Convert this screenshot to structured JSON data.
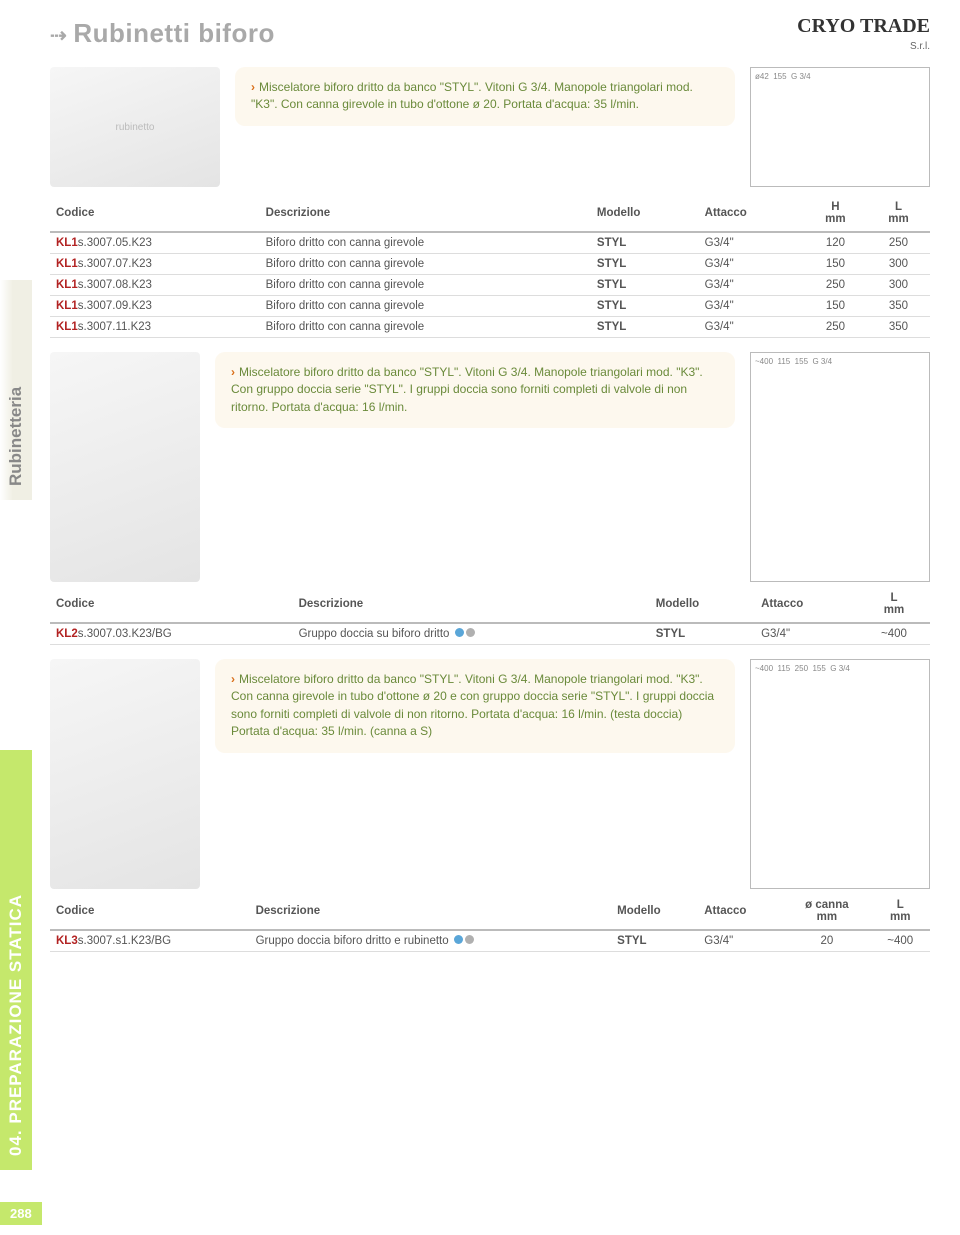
{
  "header": {
    "title": "Rubinetti biforo",
    "logo": "CRYO TRADE",
    "logo_sub": "S.r.l."
  },
  "sidebar": {
    "tab1": "Rubinetteria",
    "tab2": "04. PREPARAZIONE STATICA"
  },
  "section1": {
    "desc": "Miscelatore biforo dritto da banco \"STYL\". Vitoni G 3/4. Manopole triangolari mod. \"K3\". Con canna girevole in tubo d'ottone ø 20. Portata d'acqua: 35 l/min.",
    "table": {
      "headers": [
        "Codice",
        "Descrizione",
        "Modello",
        "Attacco",
        "H mm",
        "L mm"
      ],
      "rows": [
        {
          "code_prefix": "KL",
          "code_red": "1",
          "code_rest": "s.3007.05.K23",
          "desc": "Biforo dritto con canna girevole",
          "model": "STYL",
          "att": "G3/4\"",
          "h": "120",
          "l": "250"
        },
        {
          "code_prefix": "KL",
          "code_red": "1",
          "code_rest": "s.3007.07.K23",
          "desc": "Biforo dritto con canna girevole",
          "model": "STYL",
          "att": "G3/4\"",
          "h": "150",
          "l": "300"
        },
        {
          "code_prefix": "KL",
          "code_red": "1",
          "code_rest": "s.3007.08.K23",
          "desc": "Biforo dritto con canna girevole",
          "model": "STYL",
          "att": "G3/4\"",
          "h": "250",
          "l": "300"
        },
        {
          "code_prefix": "KL",
          "code_red": "1",
          "code_rest": "s.3007.09.K23",
          "desc": "Biforo dritto con canna girevole",
          "model": "STYL",
          "att": "G3/4\"",
          "h": "150",
          "l": "350"
        },
        {
          "code_prefix": "KL",
          "code_red": "1",
          "code_rest": "s.3007.11.K23",
          "desc": "Biforo dritto con canna girevole",
          "model": "STYL",
          "att": "G3/4\"",
          "h": "250",
          "l": "350"
        }
      ]
    }
  },
  "section2": {
    "desc": "Miscelatore biforo dritto da banco \"STYL\". Vitoni G 3/4. Manopole triangolari mod. \"K3\". Con gruppo doccia serie \"STYL\". I gruppi doccia sono forniti completi di valvole di non ritorno. Portata d'acqua: 16 l/min.",
    "table": {
      "headers": [
        "Codice",
        "Descrizione",
        "Modello",
        "Attacco",
        "L mm"
      ],
      "rows": [
        {
          "code_prefix": "KL",
          "code_red": "2",
          "code_rest": "s.3007.03.K23/BG",
          "desc": "Gruppo doccia su biforo dritto",
          "model": "STYL",
          "att": "G3/4\"",
          "l": "~400"
        }
      ]
    }
  },
  "section3": {
    "desc": "Miscelatore biforo dritto da banco \"STYL\". Vitoni G 3/4. Manopole triangolari mod. \"K3\". Con canna girevole in tubo d'ottone ø 20 e con gruppo doccia serie \"STYL\". I gruppi doccia sono forniti completi di valvole di non ritorno. Portata d'acqua: 16 l/min. (testa doccia) Portata d'acqua: 35 l/min. (canna a S)",
    "table": {
      "headers": [
        "Codice",
        "Descrizione",
        "Modello",
        "Attacco",
        "ø canna mm",
        "L mm"
      ],
      "rows": [
        {
          "code_prefix": "KL",
          "code_red": "3",
          "code_rest": "s.3007.s1.K23/BG",
          "desc": "Gruppo doccia biforo dritto e rubinetto",
          "model": "STYL",
          "att": "G3/4\"",
          "d": "20",
          "l": "~400"
        }
      ]
    }
  },
  "page_number": "288",
  "colors": {
    "accent_green": "#c5e86c",
    "desc_bg": "#fdf8ee",
    "desc_text": "#6a8a3a",
    "chevron": "#d96f1a",
    "code_red": "#b22222",
    "title_grey": "#a9a9a9"
  }
}
